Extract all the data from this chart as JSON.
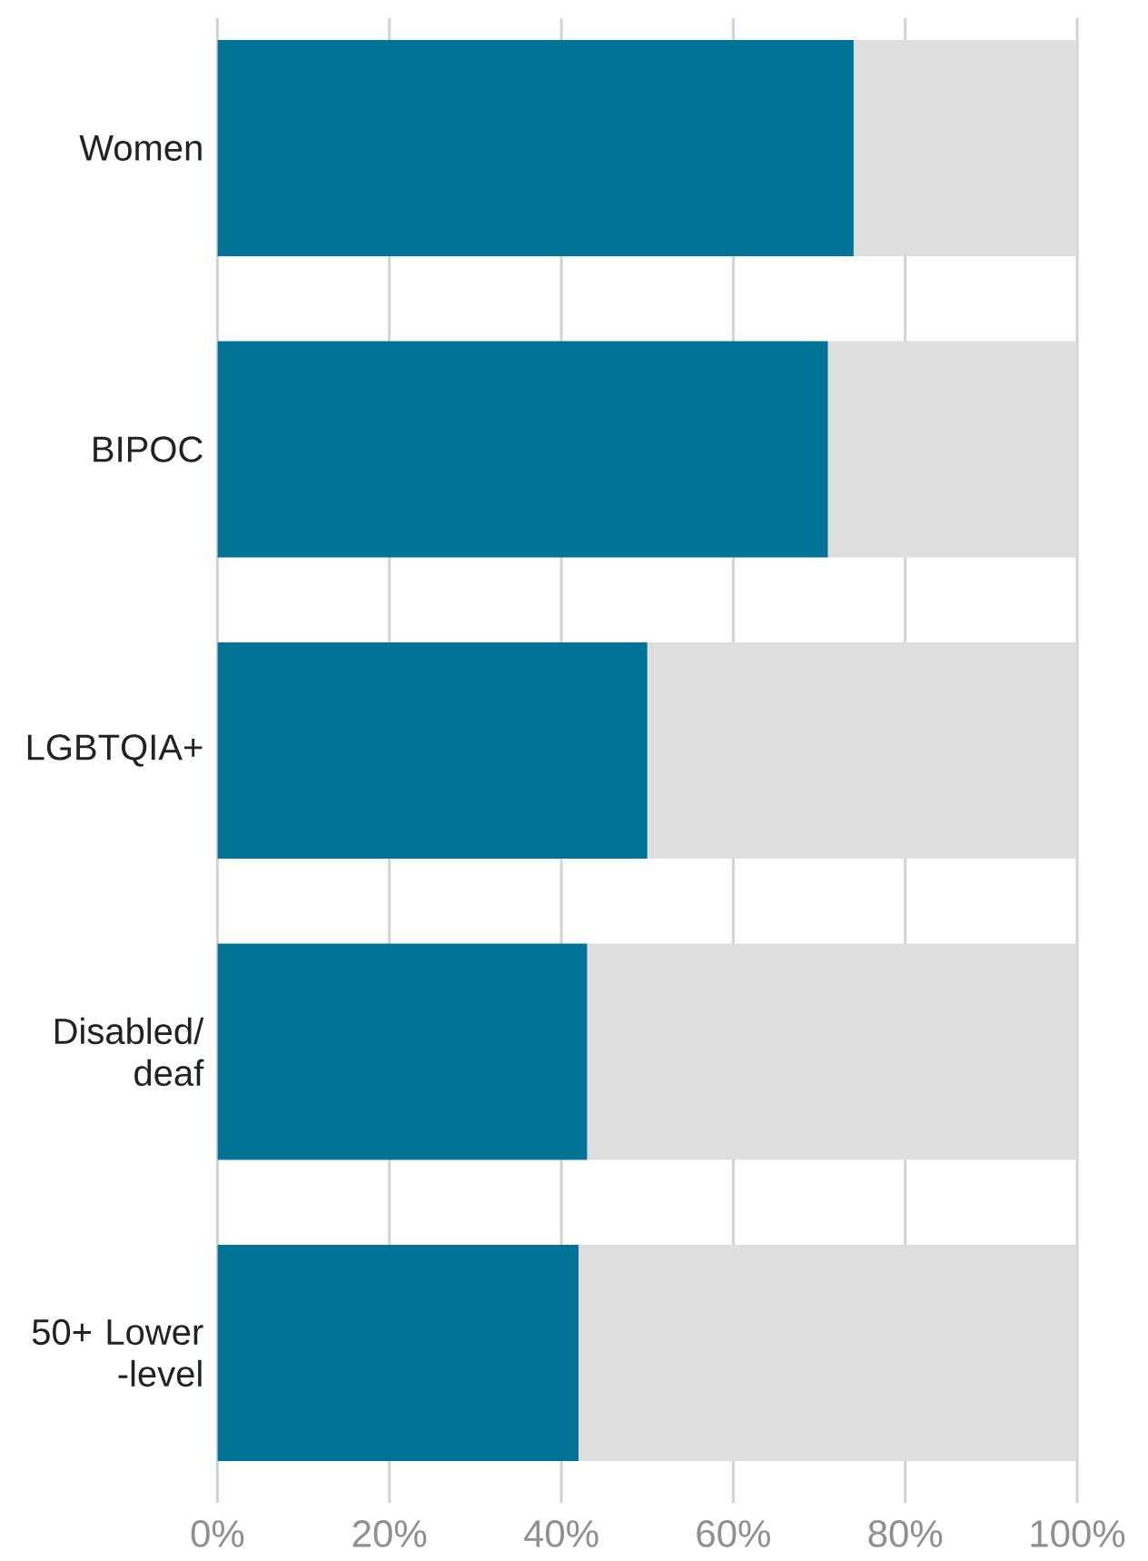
{
  "chart_data": {
    "type": "bar",
    "orientation": "horizontal",
    "stacked": true,
    "categories": [
      "Women",
      "BIPOC",
      "LGBTQIA+",
      "Disabled/deaf",
      "50+ Lower -level"
    ],
    "series": [
      {
        "color": "#007396",
        "values": [
          74,
          71,
          50,
          43,
          42
        ]
      },
      {
        "color": "#dedede",
        "values": [
          26,
          29,
          50,
          57,
          58
        ]
      }
    ],
    "xlim": [
      0,
      100
    ],
    "xticks": [
      {
        "value": 0,
        "label": "0%"
      },
      {
        "value": 20,
        "label": "20%"
      },
      {
        "value": 40,
        "label": "40%"
      },
      {
        "value": 60,
        "label": "60%"
      },
      {
        "value": 80,
        "label": "80%"
      },
      {
        "value": 100,
        "label": "100%"
      }
    ],
    "grid": "x"
  }
}
